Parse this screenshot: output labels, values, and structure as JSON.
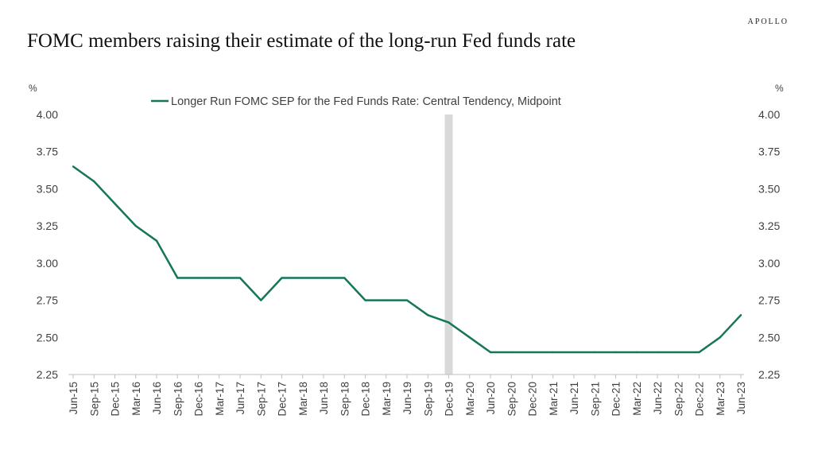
{
  "brand": "APOLLO",
  "title": "FOMC members raising their estimate of the long-run Fed funds rate",
  "colors": {
    "line": "#15765a",
    "recession": "#d9d9d9",
    "axis": "#bfbfbf",
    "text": "#404040"
  },
  "chart_data": {
    "type": "line",
    "title": "FOMC members raising their estimate of the long-run Fed funds rate",
    "ylabel_left": "%",
    "ylabel_right": "%",
    "ylim": [
      2.25,
      4.0
    ],
    "yticks": [
      "2.25",
      "2.50",
      "2.75",
      "3.00",
      "3.25",
      "3.50",
      "3.75",
      "4.00"
    ],
    "grid": false,
    "legend": "top-center",
    "shaded_period": "Dec-19",
    "categories": [
      "Jun-15",
      "Sep-15",
      "Dec-15",
      "Mar-16",
      "Jun-16",
      "Sep-16",
      "Dec-16",
      "Mar-17",
      "Jun-17",
      "Sep-17",
      "Dec-17",
      "Mar-18",
      "Jun-18",
      "Sep-18",
      "Dec-18",
      "Mar-19",
      "Jun-19",
      "Sep-19",
      "Dec-19",
      "Mar-20",
      "Jun-20",
      "Sep-20",
      "Dec-20",
      "Mar-21",
      "Jun-21",
      "Sep-21",
      "Dec-21",
      "Mar-22",
      "Jun-22",
      "Sep-22",
      "Dec-22",
      "Mar-23",
      "Jun-23"
    ],
    "series": [
      {
        "name": "Longer Run FOMC SEP for the Fed Funds Rate: Central Tendency, Midpoint",
        "values": [
          3.65,
          3.55,
          3.4,
          3.25,
          3.15,
          2.9,
          2.9,
          2.9,
          2.9,
          2.75,
          2.9,
          2.9,
          2.9,
          2.9,
          2.75,
          2.75,
          2.75,
          2.65,
          2.6,
          2.5,
          2.4,
          2.4,
          2.4,
          2.4,
          2.4,
          2.4,
          2.4,
          2.4,
          2.4,
          2.4,
          2.4,
          2.5,
          2.65
        ]
      }
    ]
  }
}
